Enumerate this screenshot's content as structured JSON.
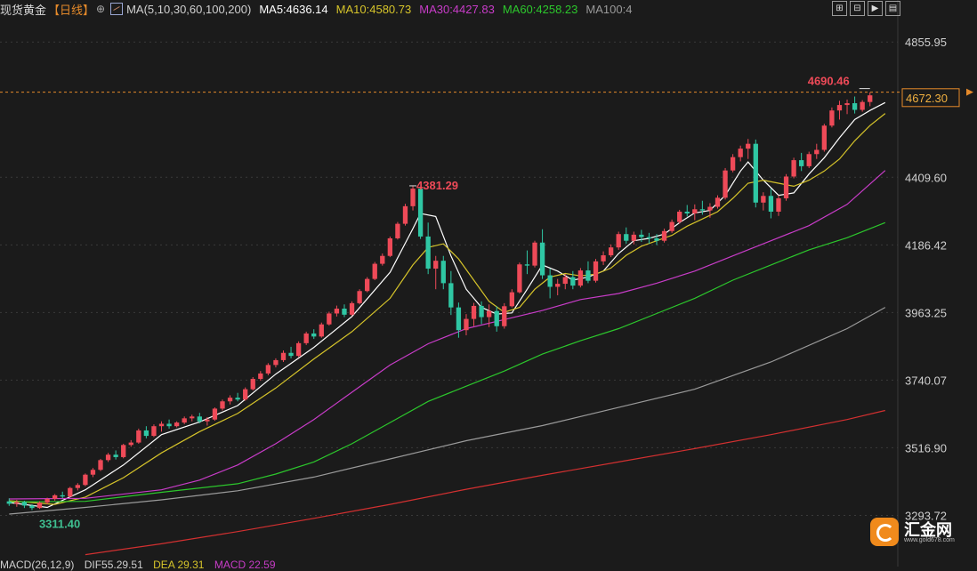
{
  "header": {
    "instrument": "现货黄金",
    "period": "【日线】",
    "circle_icon": "⊕",
    "ma_params": "MA(5,10,30,60,100,200)",
    "ma5": "MA5:4636.14",
    "ma10": "MA10:4580.73",
    "ma30": "MA30:4427.83",
    "ma60": "MA60:4258.23",
    "ma100": "MA100:4"
  },
  "toolbar": {
    "zoom_in_icon": "⊞",
    "zoom_out_icon": "⊟",
    "play_icon": "▶",
    "more_icon": "▤"
  },
  "bottom_indicator": {
    "macd": "MACD(26,12,9)",
    "dif": "DIF55.29.51",
    "dea": "DEA 29.31",
    "macd_val": "MACD 22.59"
  },
  "logo": {
    "text": "汇金网",
    "url": "www.gold678.com"
  },
  "colors": {
    "background": "#1b1b1b",
    "up": "#ee4a58",
    "down": "#2fc7a4",
    "ma5": "#ffffff",
    "ma10": "#d6c42a",
    "ma30": "#c83cc8",
    "ma60": "#2cc72c",
    "ma100": "#9a9a9a",
    "ma200": "#d23030",
    "price_line": "#e58a2a",
    "high_label": "#ee4a58",
    "low_label": "#3fbf90",
    "axis_text": "#d0d0d0"
  },
  "chart_data": {
    "type": "candlestick",
    "title": "现货黄金",
    "period": "日线",
    "y_axis_ticks": [
      "4855.95",
      "4409.60",
      "4186.42",
      "3963.25",
      "3740.07",
      "3516.90",
      "3293.72"
    ],
    "ylim": [
      3160,
      4930
    ],
    "current_price": "4672.30",
    "annotations": {
      "high": "4690.46",
      "swing_high": "4381.29",
      "low": "3311.40"
    },
    "candles": [
      [
        3340,
        3350,
        3325,
        3332
      ],
      [
        3332,
        3345,
        3322,
        3338
      ],
      [
        3338,
        3342,
        3318,
        3326
      ],
      [
        3326,
        3330,
        3311,
        3318
      ],
      [
        3318,
        3340,
        3315,
        3336
      ],
      [
        3336,
        3352,
        3330,
        3348
      ],
      [
        3348,
        3364,
        3342,
        3360
      ],
      [
        3360,
        3372,
        3350,
        3356
      ],
      [
        3356,
        3388,
        3352,
        3384
      ],
      [
        3384,
        3400,
        3376,
        3394
      ],
      [
        3394,
        3432,
        3390,
        3428
      ],
      [
        3428,
        3450,
        3420,
        3444
      ],
      [
        3444,
        3480,
        3440,
        3476
      ],
      [
        3476,
        3500,
        3470,
        3494
      ],
      [
        3494,
        3508,
        3478,
        3486
      ],
      [
        3486,
        3530,
        3482,
        3526
      ],
      [
        3526,
        3542,
        3520,
        3534
      ],
      [
        3534,
        3580,
        3530,
        3574
      ],
      [
        3574,
        3588,
        3548,
        3556
      ],
      [
        3556,
        3594,
        3552,
        3588
      ],
      [
        3588,
        3604,
        3570,
        3596
      ],
      [
        3596,
        3610,
        3580,
        3588
      ],
      [
        3588,
        3604,
        3584,
        3600
      ],
      [
        3600,
        3620,
        3595,
        3614
      ],
      [
        3614,
        3626,
        3604,
        3620
      ],
      [
        3620,
        3632,
        3598,
        3604
      ],
      [
        3604,
        3618,
        3590,
        3610
      ],
      [
        3610,
        3650,
        3606,
        3646
      ],
      [
        3646,
        3676,
        3640,
        3670
      ],
      [
        3670,
        3690,
        3660,
        3682
      ],
      [
        3682,
        3698,
        3670,
        3676
      ],
      [
        3676,
        3716,
        3672,
        3710
      ],
      [
        3710,
        3750,
        3706,
        3744
      ],
      [
        3744,
        3770,
        3738,
        3762
      ],
      [
        3762,
        3796,
        3756,
        3790
      ],
      [
        3790,
        3812,
        3782,
        3806
      ],
      [
        3806,
        3838,
        3800,
        3830
      ],
      [
        3830,
        3850,
        3812,
        3820
      ],
      [
        3820,
        3868,
        3816,
        3862
      ],
      [
        3862,
        3900,
        3856,
        3894
      ],
      [
        3894,
        3908,
        3876,
        3884
      ],
      [
        3884,
        3930,
        3880,
        3924
      ],
      [
        3924,
        3966,
        3920,
        3960
      ],
      [
        3960,
        3986,
        3950,
        3976
      ],
      [
        3976,
        3990,
        3948,
        3956
      ],
      [
        3956,
        4000,
        3952,
        3994
      ],
      [
        3994,
        4040,
        3990,
        4034
      ],
      [
        4034,
        4080,
        4030,
        4074
      ],
      [
        4074,
        4130,
        4070,
        4124
      ],
      [
        4124,
        4158,
        4118,
        4150
      ],
      [
        4150,
        4214,
        4146,
        4208
      ],
      [
        4208,
        4262,
        4204,
        4256
      ],
      [
        4256,
        4322,
        4250,
        4314
      ],
      [
        4314,
        4381,
        4300,
        4372
      ],
      [
        4372,
        4376,
        4206,
        4214
      ],
      [
        4214,
        4260,
        4090,
        4108
      ],
      [
        4108,
        4150,
        4040,
        4134
      ],
      [
        4134,
        4150,
        4040,
        4060
      ],
      [
        4060,
        4100,
        3955,
        3980
      ],
      [
        3980,
        3996,
        3880,
        3905
      ],
      [
        3905,
        3958,
        3888,
        3942
      ],
      [
        3942,
        3995,
        3918,
        3985
      ],
      [
        3985,
        4000,
        3925,
        3948
      ],
      [
        3948,
        3990,
        3915,
        3968
      ],
      [
        3968,
        3984,
        3900,
        3918
      ],
      [
        3918,
        3994,
        3910,
        3984
      ],
      [
        3984,
        4040,
        3980,
        4030
      ],
      [
        4030,
        4128,
        4026,
        4122
      ],
      [
        4122,
        4168,
        4090,
        4118
      ],
      [
        4118,
        4200,
        4112,
        4194
      ],
      [
        4194,
        4238,
        4074,
        4086
      ],
      [
        4086,
        4108,
        4010,
        4048
      ],
      [
        4048,
        4074,
        4020,
        4058
      ],
      [
        4058,
        4090,
        4040,
        4080
      ],
      [
        4080,
        4100,
        4040,
        4052
      ],
      [
        4052,
        4110,
        4046,
        4102
      ],
      [
        4102,
        4132,
        4060,
        4068
      ],
      [
        4068,
        4140,
        4062,
        4132
      ],
      [
        4132,
        4165,
        4120,
        4152
      ],
      [
        4152,
        4188,
        4146,
        4178
      ],
      [
        4178,
        4230,
        4170,
        4222
      ],
      [
        4222,
        4244,
        4190,
        4200
      ],
      [
        4200,
        4230,
        4188,
        4220
      ],
      [
        4220,
        4236,
        4196,
        4212
      ],
      [
        4212,
        4226,
        4190,
        4208
      ],
      [
        4208,
        4222,
        4186,
        4200
      ],
      [
        4200,
        4240,
        4194,
        4232
      ],
      [
        4232,
        4270,
        4226,
        4262
      ],
      [
        4262,
        4302,
        4256,
        4296
      ],
      [
        4296,
        4318,
        4280,
        4290
      ],
      [
        4290,
        4320,
        4268,
        4304
      ],
      [
        4304,
        4332,
        4286,
        4300
      ],
      [
        4300,
        4324,
        4276,
        4312
      ],
      [
        4312,
        4350,
        4306,
        4342
      ],
      [
        4342,
        4440,
        4336,
        4432
      ],
      [
        4432,
        4486,
        4426,
        4476
      ],
      [
        4476,
        4514,
        4462,
        4504
      ],
      [
        4504,
        4536,
        4470,
        4520
      ],
      [
        4520,
        4534,
        4310,
        4326
      ],
      [
        4326,
        4360,
        4300,
        4348
      ],
      [
        4348,
        4372,
        4274,
        4296
      ],
      [
        4296,
        4350,
        4282,
        4340
      ],
      [
        4340,
        4420,
        4332,
        4412
      ],
      [
        4412,
        4474,
        4406,
        4466
      ],
      [
        4466,
        4490,
        4430,
        4446
      ],
      [
        4446,
        4494,
        4440,
        4486
      ],
      [
        4486,
        4520,
        4470,
        4500
      ],
      [
        4500,
        4586,
        4494,
        4580
      ],
      [
        4580,
        4640,
        4574,
        4630
      ],
      [
        4630,
        4662,
        4600,
        4648
      ],
      [
        4648,
        4666,
        4618,
        4654
      ],
      [
        4654,
        4676,
        4620,
        4632
      ],
      [
        4632,
        4664,
        4626,
        4658
      ],
      [
        4658,
        4690,
        4644,
        4680
      ]
    ],
    "ma_series": [
      {
        "name": "MA5",
        "color": "#ffffff",
        "points": [
          [
            0,
            3336
          ],
          [
            5,
            3320
          ],
          [
            10,
            3378
          ],
          [
            15,
            3460
          ],
          [
            20,
            3560
          ],
          [
            25,
            3602
          ],
          [
            30,
            3656
          ],
          [
            35,
            3760
          ],
          [
            40,
            3848
          ],
          [
            45,
            3950
          ],
          [
            50,
            4096
          ],
          [
            53,
            4240
          ],
          [
            54,
            4290
          ],
          [
            56,
            4280
          ],
          [
            58,
            4150
          ],
          [
            60,
            4040
          ],
          [
            62,
            3980
          ],
          [
            64,
            3958
          ],
          [
            66,
            3962
          ],
          [
            68,
            4040
          ],
          [
            70,
            4120
          ],
          [
            72,
            4100
          ],
          [
            74,
            4070
          ],
          [
            76,
            4080
          ],
          [
            78,
            4100
          ],
          [
            80,
            4158
          ],
          [
            82,
            4200
          ],
          [
            84,
            4208
          ],
          [
            86,
            4222
          ],
          [
            88,
            4260
          ],
          [
            90,
            4292
          ],
          [
            92,
            4300
          ],
          [
            94,
            4350
          ],
          [
            96,
            4430
          ],
          [
            97,
            4460
          ],
          [
            99,
            4400
          ],
          [
            101,
            4350
          ],
          [
            103,
            4358
          ],
          [
            105,
            4420
          ],
          [
            107,
            4474
          ],
          [
            109,
            4540
          ],
          [
            111,
            4600
          ],
          [
            113,
            4630
          ],
          [
            115,
            4656
          ]
        ]
      },
      {
        "name": "MA10",
        "color": "#d6c42a",
        "points": [
          [
            0,
            3342
          ],
          [
            6,
            3330
          ],
          [
            10,
            3354
          ],
          [
            15,
            3418
          ],
          [
            20,
            3500
          ],
          [
            25,
            3570
          ],
          [
            30,
            3630
          ],
          [
            35,
            3714
          ],
          [
            40,
            3810
          ],
          [
            45,
            3900
          ],
          [
            50,
            4010
          ],
          [
            53,
            4120
          ],
          [
            55,
            4178
          ],
          [
            57,
            4190
          ],
          [
            59,
            4140
          ],
          [
            61,
            4070
          ],
          [
            63,
            4000
          ],
          [
            65,
            3964
          ],
          [
            67,
            3980
          ],
          [
            69,
            4040
          ],
          [
            71,
            4080
          ],
          [
            73,
            4092
          ],
          [
            75,
            4084
          ],
          [
            77,
            4090
          ],
          [
            79,
            4110
          ],
          [
            81,
            4152
          ],
          [
            83,
            4182
          ],
          [
            85,
            4200
          ],
          [
            87,
            4218
          ],
          [
            89,
            4248
          ],
          [
            91,
            4272
          ],
          [
            93,
            4296
          ],
          [
            95,
            4340
          ],
          [
            97,
            4390
          ],
          [
            99,
            4400
          ],
          [
            101,
            4390
          ],
          [
            103,
            4380
          ],
          [
            105,
            4400
          ],
          [
            107,
            4430
          ],
          [
            109,
            4470
          ],
          [
            111,
            4530
          ],
          [
            113,
            4580
          ],
          [
            115,
            4620
          ]
        ]
      },
      {
        "name": "MA30",
        "color": "#c83cc8",
        "points": [
          [
            0,
            3348
          ],
          [
            10,
            3350
          ],
          [
            20,
            3378
          ],
          [
            25,
            3410
          ],
          [
            30,
            3460
          ],
          [
            35,
            3530
          ],
          [
            40,
            3610
          ],
          [
            45,
            3700
          ],
          [
            50,
            3790
          ],
          [
            55,
            3860
          ],
          [
            60,
            3910
          ],
          [
            65,
            3940
          ],
          [
            70,
            3970
          ],
          [
            75,
            4006
          ],
          [
            80,
            4026
          ],
          [
            85,
            4060
          ],
          [
            90,
            4100
          ],
          [
            95,
            4150
          ],
          [
            100,
            4200
          ],
          [
            105,
            4250
          ],
          [
            110,
            4320
          ],
          [
            115,
            4432
          ]
        ]
      },
      {
        "name": "MA60",
        "color": "#2cc72c",
        "points": [
          [
            0,
            3338
          ],
          [
            10,
            3340
          ],
          [
            20,
            3370
          ],
          [
            30,
            3398
          ],
          [
            35,
            3430
          ],
          [
            40,
            3470
          ],
          [
            45,
            3530
          ],
          [
            50,
            3600
          ],
          [
            55,
            3670
          ],
          [
            60,
            3720
          ],
          [
            65,
            3770
          ],
          [
            70,
            3826
          ],
          [
            75,
            3870
          ],
          [
            80,
            3910
          ],
          [
            85,
            3960
          ],
          [
            90,
            4010
          ],
          [
            95,
            4070
          ],
          [
            100,
            4120
          ],
          [
            105,
            4170
          ],
          [
            110,
            4210
          ],
          [
            115,
            4260
          ]
        ]
      },
      {
        "name": "MA100",
        "color": "#9a9a9a",
        "points": [
          [
            0,
            3298
          ],
          [
            10,
            3320
          ],
          [
            20,
            3345
          ],
          [
            30,
            3375
          ],
          [
            40,
            3420
          ],
          [
            50,
            3480
          ],
          [
            60,
            3540
          ],
          [
            70,
            3590
          ],
          [
            80,
            3650
          ],
          [
            90,
            3710
          ],
          [
            100,
            3800
          ],
          [
            110,
            3910
          ],
          [
            115,
            3980
          ]
        ]
      },
      {
        "name": "MA200",
        "color": "#d23030",
        "points": [
          [
            10,
            3164
          ],
          [
            20,
            3200
          ],
          [
            30,
            3240
          ],
          [
            40,
            3284
          ],
          [
            50,
            3330
          ],
          [
            60,
            3380
          ],
          [
            70,
            3426
          ],
          [
            80,
            3470
          ],
          [
            90,
            3514
          ],
          [
            100,
            3560
          ],
          [
            110,
            3610
          ],
          [
            115,
            3640
          ]
        ]
      }
    ]
  }
}
